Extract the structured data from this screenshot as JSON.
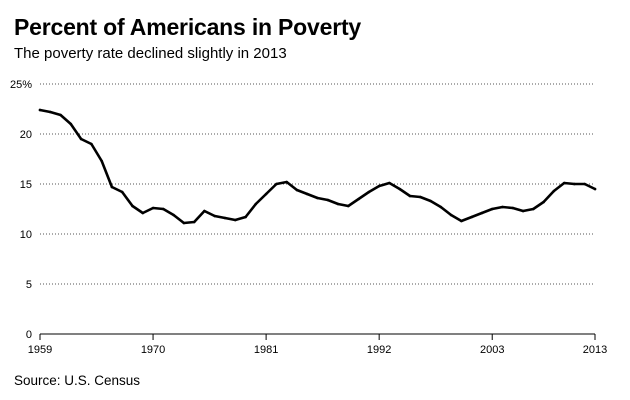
{
  "header": {
    "title": "Percent of Americans in Poverty",
    "subtitle": "The poverty rate declined slightly in 2013"
  },
  "footer": {
    "source": "Source: U.S. Census"
  },
  "colors": {
    "line": "#000000",
    "grid": "#555555",
    "axis": "#000000"
  },
  "chart_data": {
    "type": "line",
    "title": "Percent of Americans in Poverty",
    "subtitle": "The poverty rate declined slightly in 2013",
    "xlabel": "",
    "ylabel": "",
    "xlim": [
      1959,
      2013
    ],
    "ylim": [
      0,
      25
    ],
    "x_ticks": [
      1959,
      1970,
      1981,
      1992,
      2003,
      2013
    ],
    "x_tick_labels": [
      "1959",
      "1970",
      "1981",
      "1992",
      "2003",
      "2013"
    ],
    "y_ticks": [
      0,
      5,
      10,
      15,
      20,
      25
    ],
    "y_tick_labels": [
      "0",
      "5",
      "10",
      "15",
      "20",
      "25%"
    ],
    "grid": "horizontal dotted",
    "x": [
      1959,
      1960,
      1961,
      1962,
      1963,
      1964,
      1965,
      1966,
      1967,
      1968,
      1969,
      1970,
      1971,
      1972,
      1973,
      1974,
      1975,
      1976,
      1977,
      1978,
      1979,
      1980,
      1981,
      1982,
      1983,
      1984,
      1985,
      1986,
      1987,
      1988,
      1989,
      1990,
      1991,
      1992,
      1993,
      1994,
      1995,
      1996,
      1997,
      1998,
      1999,
      2000,
      2001,
      2002,
      2003,
      2004,
      2005,
      2006,
      2007,
      2008,
      2009,
      2010,
      2011,
      2012,
      2013
    ],
    "series": [
      {
        "values": [
          22.4,
          22.2,
          21.9,
          21.0,
          19.5,
          19.0,
          17.3,
          14.7,
          14.2,
          12.8,
          12.1,
          12.6,
          12.5,
          11.9,
          11.1,
          11.2,
          12.3,
          11.8,
          11.6,
          11.4,
          11.7,
          13.0,
          14.0,
          15.0,
          15.2,
          14.4,
          14.0,
          13.6,
          13.4,
          13.0,
          12.8,
          13.5,
          14.2,
          14.8,
          15.1,
          14.5,
          13.8,
          13.7,
          13.3,
          12.7,
          11.9,
          11.3,
          11.7,
          12.1,
          12.5,
          12.7,
          12.6,
          12.3,
          12.5,
          13.2,
          14.3,
          15.1,
          15.0,
          15.0,
          14.5
        ]
      }
    ]
  }
}
